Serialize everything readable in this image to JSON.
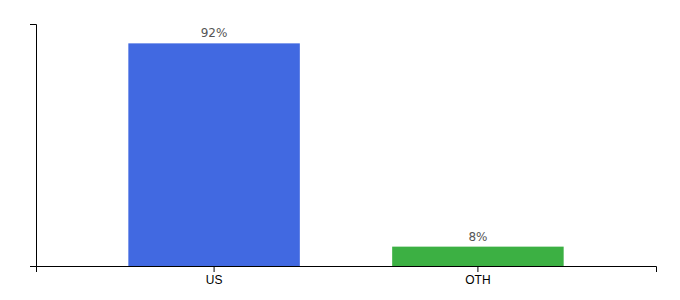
{
  "chart_data": {
    "type": "bar",
    "categories": [
      "US",
      "OTH"
    ],
    "values": [
      92,
      8
    ],
    "value_labels": [
      "92%",
      "8%"
    ],
    "data_labels": true,
    "colors": [
      "#4169e1",
      "#3cb043"
    ],
    "ylim": [
      0,
      100
    ],
    "yticks": [],
    "tick_labels": "x",
    "grid": false
  }
}
